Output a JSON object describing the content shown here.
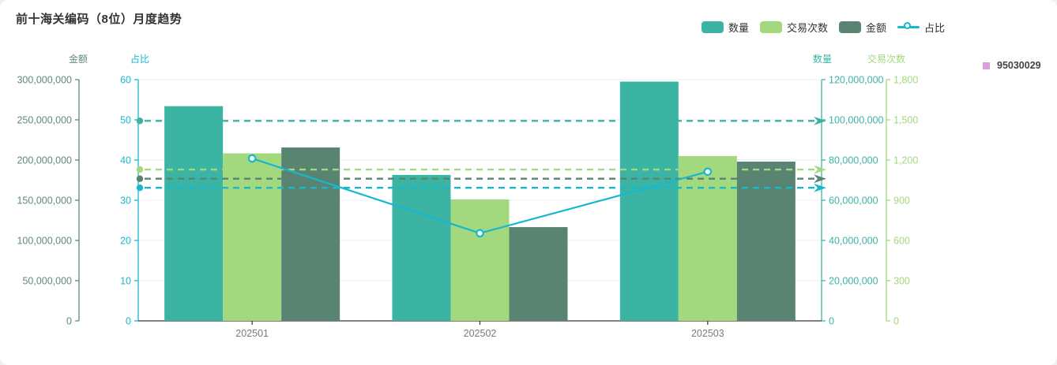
{
  "header": {
    "title": "前十海关编码（8位）月度趋势"
  },
  "right_legend": {
    "marker_color": "#D9A0DC",
    "items": [
      {
        "label": "95030029"
      }
    ]
  },
  "chart_data": {
    "type": "bar",
    "title": "前十海关编码（8位）月度趋势",
    "categories": [
      "202501",
      "202502",
      "202503"
    ],
    "series": [
      {
        "key": "quantity",
        "name": "数量",
        "type": "bar",
        "axis": "qty",
        "color": "#3CB4A4",
        "values": [
          106800000,
          72600000,
          119000000
        ],
        "average_markline": 99466667
      },
      {
        "key": "transactions",
        "name": "交易次数",
        "type": "bar",
        "axis": "txn",
        "color": "#A3D97E",
        "values": [
          1250,
          906,
          1230
        ],
        "average_markline": 1129
      },
      {
        "key": "amount",
        "name": "金额",
        "type": "bar",
        "axis": "amount",
        "color": "#588471",
        "values": [
          215600000,
          116600000,
          198000000
        ],
        "average_markline": 176733333
      },
      {
        "key": "ratio",
        "name": "占比",
        "type": "line",
        "axis": "pct",
        "color": "#17B8CE",
        "values": [
          40.4,
          21.8,
          37.1
        ],
        "average_markline": 33.1
      }
    ],
    "axes": {
      "amount": {
        "name": "金额",
        "side": "left",
        "min": 0,
        "max": 300000000,
        "tick_step": 50000000,
        "color": "#5F8A77"
      },
      "pct": {
        "name": "占比",
        "side": "left",
        "min": 0,
        "max": 60,
        "tick_step": 10,
        "color": "#17B8CE"
      },
      "qty": {
        "name": "数量",
        "side": "right",
        "min": 0,
        "max": 120000000,
        "tick_step": 20000000,
        "color": "#3CB4A4"
      },
      "txn": {
        "name": "交易次数",
        "side": "right",
        "min": 0,
        "max": 1800,
        "tick_step": 300,
        "color": "#A3D97E"
      }
    },
    "grid": true,
    "legend_position": "top-right",
    "xlabel_color": "#7A7A7A",
    "gridline_color": "#E9EDF4",
    "xaxis_color": "#333333"
  }
}
